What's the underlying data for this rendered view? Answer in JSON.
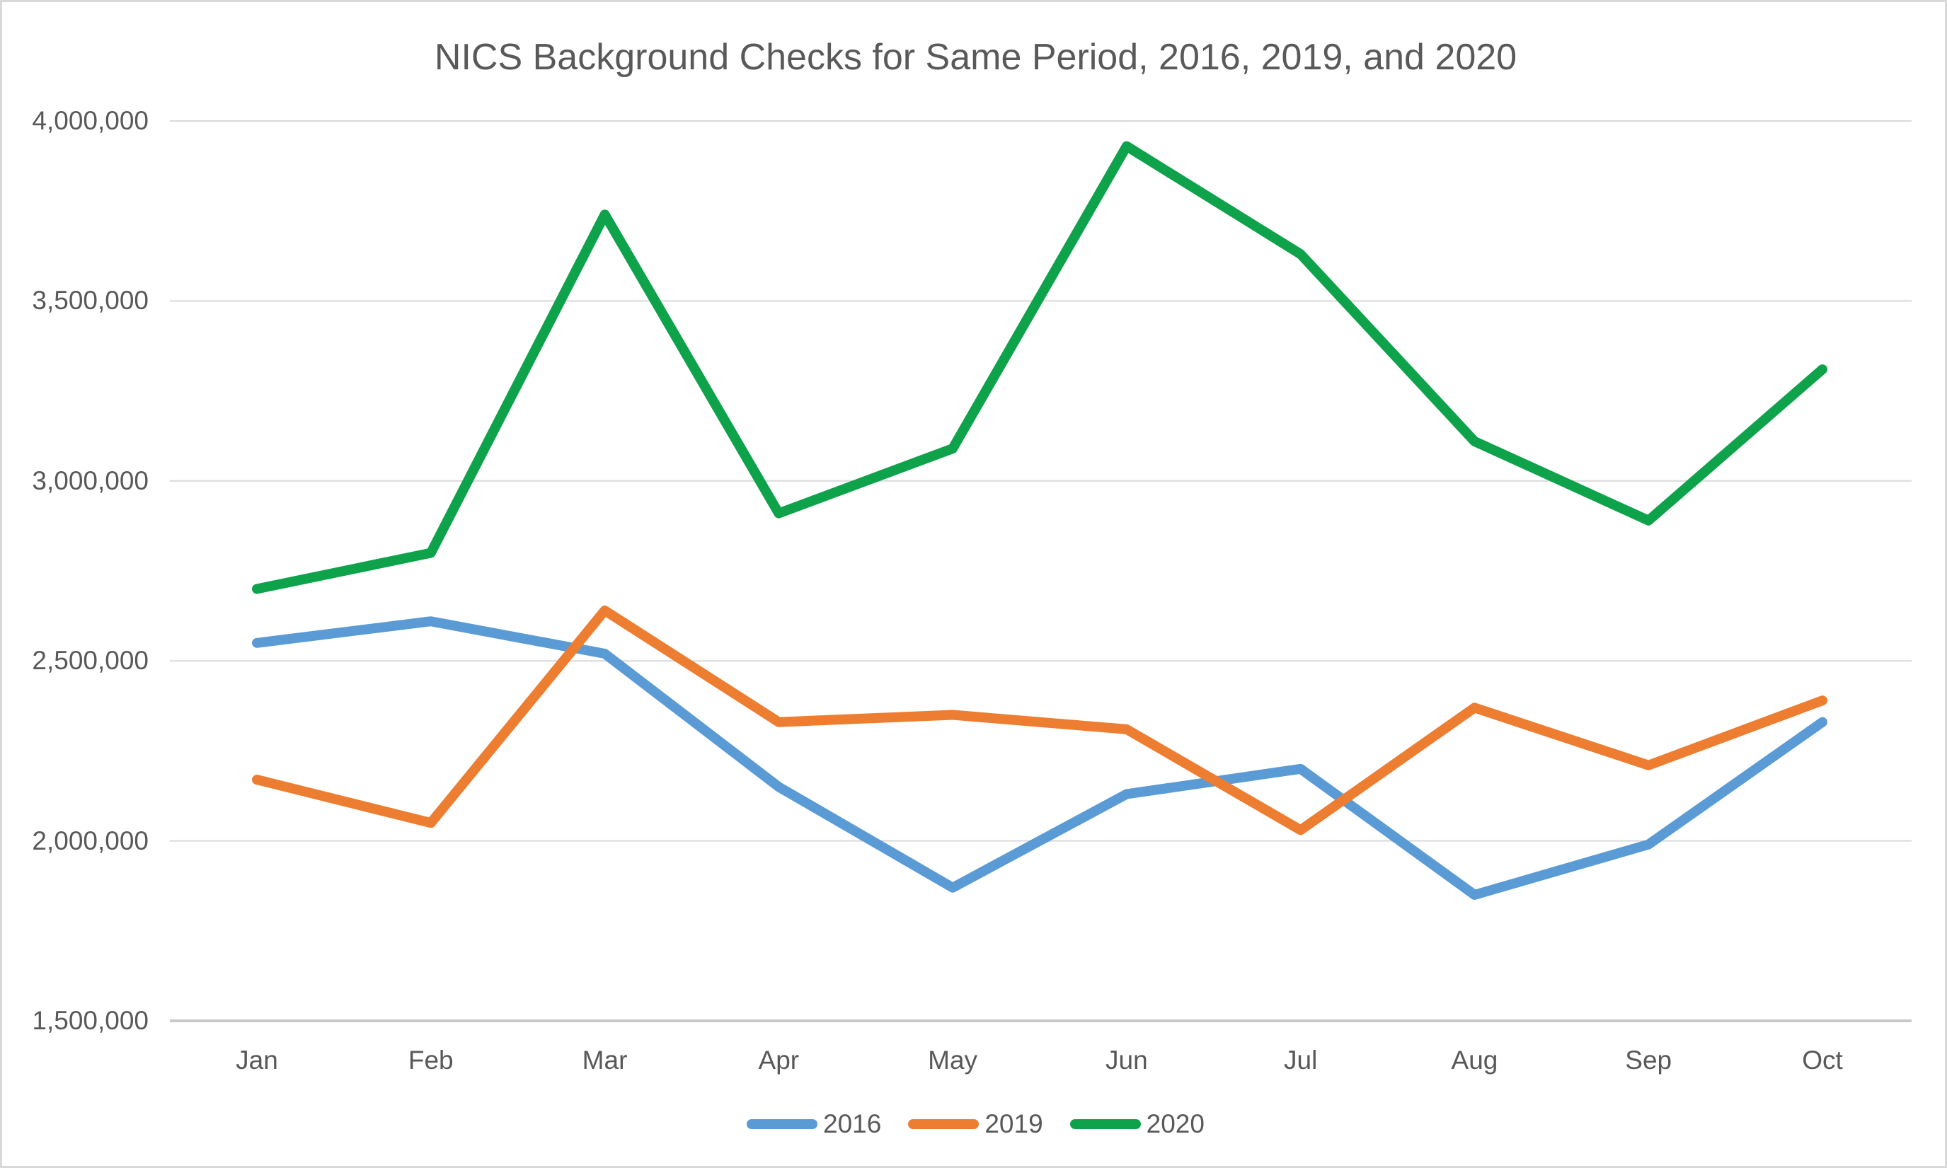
{
  "page": {
    "title": "NICS Background Checks for Same Period, 2016, 2019, and 2020"
  },
  "chart_data": {
    "type": "line",
    "title": "NICS Background Checks for Same Period, 2016, 2019, and 2020",
    "categories": [
      "Jan",
      "Feb",
      "Mar",
      "Apr",
      "May",
      "Jun",
      "Jul",
      "Aug",
      "Sep",
      "Oct"
    ],
    "series": [
      {
        "name": "2016",
        "color": "#5B9BD5",
        "values": [
          2550000,
          2610000,
          2520000,
          2150000,
          1870000,
          2130000,
          2200000,
          1850000,
          1990000,
          2330000
        ]
      },
      {
        "name": "2019",
        "color": "#ED7D31",
        "values": [
          2170000,
          2050000,
          2640000,
          2330000,
          2350000,
          2310000,
          2030000,
          2370000,
          2210000,
          2390000
        ]
      },
      {
        "name": "2020",
        "color": "#0EA24B",
        "values": [
          2700000,
          2800000,
          3740000,
          2910000,
          3090000,
          3930000,
          3630000,
          3110000,
          2890000,
          3310000
        ]
      }
    ],
    "y_axis": {
      "min": 1500000,
      "max": 4000000,
      "step": 500000,
      "tick_labels": [
        "1,500,000",
        "2,000,000",
        "2,500,000",
        "3,000,000",
        "3,500,000",
        "4,000,000"
      ]
    },
    "x_axis_label": "",
    "y_axis_label": "",
    "grid": true,
    "legend_position": "bottom",
    "colors": {
      "text": "#595959",
      "gridline": "#D9D9D9",
      "axis_line": "#C9C9C9",
      "background": "#FFFFFF",
      "border": "#D9D9D9"
    }
  }
}
